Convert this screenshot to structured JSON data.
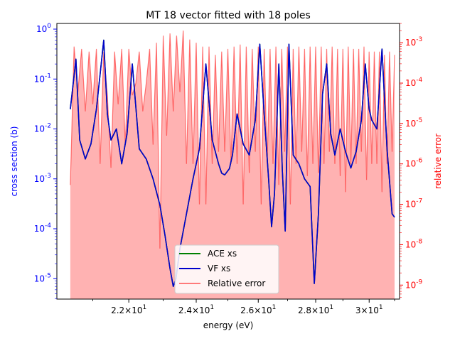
{
  "chart_data": {
    "type": "line",
    "title": "MT 18 vector fitted with 18 poles",
    "xlabel": "energy (eV)",
    "ylabel": "cross section (b)",
    "y2label": "relative error",
    "x_scale": "log",
    "y_scale": "log",
    "y2_scale": "log",
    "xlim": [
      20.05,
      31.2
    ],
    "ylim": [
      3.9e-06,
      1.3
    ],
    "y2lim": [
      4.5e-10,
      0.003
    ],
    "grid": false,
    "legend_position": "lower-center",
    "x_ticks": [
      {
        "value": 22,
        "base": "2.2",
        "exp": "1"
      },
      {
        "value": 24,
        "base": "2.4",
        "exp": "1"
      },
      {
        "value": 26,
        "base": "2.6",
        "exp": "1"
      },
      {
        "value": 28,
        "base": "2.8",
        "exp": "1"
      },
      {
        "value": 30,
        "base": "3",
        "exp": "1"
      }
    ],
    "y_ticks": [
      {
        "value": 1e-05,
        "exp": "-5"
      },
      {
        "value": 0.0001,
        "exp": "-4"
      },
      {
        "value": 0.001,
        "exp": "-3"
      },
      {
        "value": 0.01,
        "exp": "-2"
      },
      {
        "value": 0.1,
        "exp": "-1"
      },
      {
        "value": 1,
        "exp": "0"
      }
    ],
    "y2_ticks": [
      {
        "value": 1e-09,
        "exp": "-9"
      },
      {
        "value": 1e-08,
        "exp": "-8"
      },
      {
        "value": 1e-07,
        "exp": "-7"
      },
      {
        "value": 1e-06,
        "exp": "-6"
      },
      {
        "value": 1e-05,
        "exp": "-5"
      },
      {
        "value": 0.0001,
        "exp": "-4"
      },
      {
        "value": 0.001,
        "exp": "-3"
      }
    ],
    "series": [
      {
        "name": "ACE xs",
        "color": "#008000",
        "axis": "left",
        "x": [
          20.4,
          20.55,
          20.65,
          20.8,
          20.95,
          21.1,
          21.3,
          21.4,
          21.5,
          21.65,
          21.8,
          21.95,
          22.1,
          22.3,
          22.5,
          22.7,
          22.9,
          23.05,
          23.2,
          23.3,
          23.38,
          23.5,
          23.7,
          23.9,
          24.1,
          24.3,
          24.5,
          24.7,
          24.8,
          24.9,
          25.05,
          25.15,
          25.3,
          25.5,
          25.7,
          25.9,
          26.05,
          26.2,
          26.35,
          26.45,
          26.55,
          26.7,
          26.82,
          26.92,
          27.05,
          27.2,
          27.4,
          27.6,
          27.8,
          27.95,
          28.1,
          28.25,
          28.4,
          28.55,
          28.7,
          28.9,
          29.1,
          29.3,
          29.5,
          29.7,
          29.85,
          30.0,
          30.1,
          30.3,
          30.5,
          30.7,
          30.9,
          31.0
        ],
        "y": [
          0.025,
          0.25,
          0.006,
          0.0025,
          0.005,
          0.025,
          0.6,
          0.02,
          0.006,
          0.01,
          0.002,
          0.008,
          0.2,
          0.004,
          0.0025,
          0.001,
          0.0003,
          7.5e-05,
          1.6e-05,
          7e-06,
          1e-05,
          4e-05,
          0.0002,
          0.001,
          0.004,
          0.2,
          0.006,
          0.002,
          0.0013,
          0.0012,
          0.0016,
          0.003,
          0.02,
          0.005,
          0.003,
          0.015,
          0.5,
          0.02,
          0.001,
          0.00011,
          0.0005,
          0.2,
          0.0015,
          9e-05,
          0.5,
          0.003,
          0.002,
          0.001,
          0.0007,
          8e-06,
          0.0002,
          0.05,
          0.2,
          0.008,
          0.003,
          0.01,
          0.0035,
          0.00165,
          0.0035,
          0.015,
          0.2,
          0.025,
          0.015,
          0.01,
          0.4,
          0.004,
          0.0002,
          0.00017
        ]
      },
      {
        "name": "VF xs",
        "color": "#0000cc",
        "axis": "left",
        "x": [
          20.4,
          20.55,
          20.65,
          20.8,
          20.95,
          21.1,
          21.3,
          21.4,
          21.5,
          21.65,
          21.8,
          21.95,
          22.1,
          22.3,
          22.5,
          22.7,
          22.9,
          23.05,
          23.2,
          23.3,
          23.38,
          23.5,
          23.7,
          23.9,
          24.1,
          24.3,
          24.5,
          24.7,
          24.8,
          24.9,
          25.05,
          25.15,
          25.3,
          25.5,
          25.7,
          25.9,
          26.05,
          26.2,
          26.35,
          26.45,
          26.55,
          26.7,
          26.82,
          26.92,
          27.05,
          27.2,
          27.4,
          27.6,
          27.8,
          27.95,
          28.1,
          28.25,
          28.4,
          28.55,
          28.7,
          28.9,
          29.1,
          29.3,
          29.5,
          29.7,
          29.85,
          30.0,
          30.1,
          30.3,
          30.5,
          30.7,
          30.9,
          31.0
        ],
        "y": [
          0.025,
          0.25,
          0.006,
          0.0025,
          0.005,
          0.025,
          0.6,
          0.02,
          0.006,
          0.01,
          0.002,
          0.008,
          0.2,
          0.004,
          0.0025,
          0.001,
          0.0003,
          7.5e-05,
          1.6e-05,
          7e-06,
          1e-05,
          4e-05,
          0.0002,
          0.001,
          0.004,
          0.2,
          0.006,
          0.002,
          0.0013,
          0.0012,
          0.0016,
          0.003,
          0.02,
          0.005,
          0.003,
          0.015,
          0.5,
          0.02,
          0.001,
          0.00011,
          0.0005,
          0.2,
          0.0015,
          9e-05,
          0.5,
          0.003,
          0.002,
          0.001,
          0.0007,
          8e-06,
          0.0002,
          0.05,
          0.2,
          0.008,
          0.003,
          0.01,
          0.0035,
          0.00165,
          0.0035,
          0.015,
          0.2,
          0.025,
          0.015,
          0.01,
          0.4,
          0.004,
          0.0002,
          0.00017
        ]
      },
      {
        "name": "Relative error",
        "color": "#ff0000",
        "opacity": 0.5,
        "axis": "right",
        "fill_to_axis_min": true,
        "x": [
          20.4,
          20.5,
          20.6,
          20.7,
          20.8,
          20.9,
          21.0,
          21.1,
          21.2,
          21.3,
          21.4,
          21.5,
          21.6,
          21.7,
          21.8,
          21.9,
          22.0,
          22.1,
          22.2,
          22.3,
          22.4,
          22.5,
          22.6,
          22.7,
          22.8,
          22.9,
          23.0,
          23.1,
          23.2,
          23.3,
          23.4,
          23.5,
          23.6,
          23.7,
          23.8,
          23.9,
          24.0,
          24.1,
          24.2,
          24.3,
          24.4,
          24.5,
          24.6,
          24.7,
          24.8,
          24.9,
          25.0,
          25.1,
          25.2,
          25.3,
          25.4,
          25.5,
          25.6,
          25.7,
          25.8,
          25.9,
          26.0,
          26.1,
          26.2,
          26.3,
          26.4,
          26.5,
          26.6,
          26.7,
          26.8,
          26.9,
          27.0,
          27.1,
          27.2,
          27.3,
          27.4,
          27.5,
          27.6,
          27.7,
          27.8,
          27.9,
          28.0,
          28.1,
          28.2,
          28.3,
          28.4,
          28.5,
          28.6,
          28.7,
          28.8,
          28.9,
          29.0,
          29.1,
          29.2,
          29.3,
          29.4,
          29.5,
          29.6,
          29.7,
          29.8,
          29.9,
          30.0,
          30.1,
          30.2,
          30.3,
          30.4,
          30.5,
          30.6,
          30.7,
          30.8,
          30.9,
          31.0
        ],
        "y": [
          3e-07,
          0.0008,
          6e-05,
          0.0007,
          2e-05,
          0.0006,
          3e-05,
          0.0007,
          1e-06,
          0.0006,
          5e-05,
          8e-07,
          0.0006,
          3e-05,
          0.0007,
          3e-06,
          0.0007,
          5e-05,
          0.0001,
          0.0006,
          2e-05,
          0.0001,
          0.0007,
          3e-06,
          0.001,
          8e-09,
          0.0015,
          5e-06,
          0.0017,
          2e-05,
          0.0015,
          6e-05,
          0.002,
          1e-06,
          0.0012,
          1e-06,
          0.001,
          1e-07,
          0.0008,
          1e-07,
          0.0008,
          1e-06,
          0.0005,
          2e-06,
          0.0006,
          2e-06,
          0.0007,
          1e-06,
          0.0008,
          1e-06,
          0.0009,
          1e-07,
          0.0008,
          6e-07,
          0.0007,
          2e-06,
          0.0008,
          1e-07,
          0.0007,
          1e-06,
          0.0007,
          1e-06,
          0.0008,
          3e-07,
          0.0007,
          2e-06,
          0.0008,
          1e-07,
          0.0007,
          1e-06,
          0.0008,
          2e-06,
          0.0007,
          5e-07,
          0.0008,
          1e-06,
          0.0008,
          6e-07,
          0.0008,
          1e-06,
          0.0007,
          2e-06,
          0.0008,
          1e-06,
          0.0007,
          5e-07,
          0.0007,
          2e-07,
          0.0008,
          1e-06,
          0.0007,
          1e-06,
          0.0007,
          2e-06,
          0.0008,
          4e-07,
          0.0006,
          1e-06,
          0.0006,
          1e-06,
          0.0006,
          2e-07,
          0.0005,
          1e-06,
          0.0006,
          2e-06,
          0.0005
        ]
      }
    ]
  }
}
